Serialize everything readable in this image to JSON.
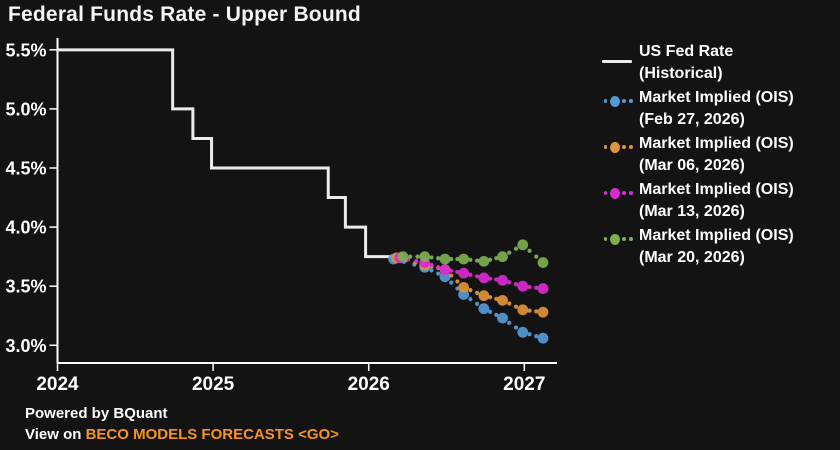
{
  "footer": {
    "powered_by": "Powered by BQuant",
    "view_on": "View on ",
    "link": "BECO MODELS FORECASTS <GO>",
    "link_color": "#f7931e"
  },
  "colors": {
    "background": "#131313",
    "axis": "#ffffff",
    "text": "#ffffff"
  },
  "chart_data": {
    "type": "line",
    "title": "Federal Funds Rate - Upper Bound",
    "xlabel": "",
    "ylabel": "",
    "legend_position": "right",
    "grid": false,
    "x_axis": {
      "ticks": [
        2024,
        2025,
        2026,
        2027
      ],
      "tick_labels": [
        "2024",
        "2025",
        "2026",
        "2027"
      ],
      "range": [
        2024,
        2027.21
      ]
    },
    "y_axis": {
      "tick_values": [
        5.5,
        5.0,
        4.5,
        4.0,
        3.5,
        3.0
      ],
      "tick_labels": [
        "5.5%",
        "5.0%",
        "4.5%",
        "4.0%",
        "3.5%",
        "3.0%"
      ],
      "range": [
        2.85,
        5.6
      ]
    },
    "series": [
      {
        "name": "US Fed Rate (Historical)",
        "legend": [
          "US Fed Rate",
          "(Historical)"
        ],
        "type": "step-line",
        "color": "#ebebeb",
        "points": [
          [
            2024.0,
            5.5
          ],
          [
            2024.74,
            5.0
          ],
          [
            2024.87,
            4.75
          ],
          [
            2024.99,
            4.5
          ],
          [
            2025.74,
            4.25
          ],
          [
            2025.85,
            4.0
          ],
          [
            2025.98,
            3.75
          ]
        ],
        "end_x": 2026.18
      },
      {
        "name": "Market Implied (OIS) (Feb 27, 2026)",
        "legend": [
          "Market Implied (OIS)",
          "(Feb 27, 2026)"
        ],
        "type": "dotted-markers",
        "color": "#539bd8",
        "points": [
          [
            2026.16,
            3.73
          ],
          [
            2026.36,
            3.66
          ],
          [
            2026.49,
            3.58
          ],
          [
            2026.61,
            3.43
          ],
          [
            2026.74,
            3.31
          ],
          [
            2026.86,
            3.23
          ],
          [
            2026.99,
            3.11
          ],
          [
            2027.12,
            3.06
          ]
        ]
      },
      {
        "name": "Market Implied (OIS) (Mar 06, 2026)",
        "legend": [
          "Market Implied (OIS)",
          "(Mar 06, 2026)"
        ],
        "type": "dotted-markers",
        "color": "#e09338",
        "points": [
          [
            2026.18,
            3.74
          ],
          [
            2026.36,
            3.68
          ],
          [
            2026.49,
            3.64
          ],
          [
            2026.61,
            3.49
          ],
          [
            2026.74,
            3.42
          ],
          [
            2026.86,
            3.38
          ],
          [
            2026.99,
            3.3
          ],
          [
            2027.12,
            3.28
          ]
        ]
      },
      {
        "name": "Market Implied (OIS) (Mar 13, 2026)",
        "legend": [
          "Market Implied (OIS)",
          "(Mar 13, 2026)"
        ],
        "type": "dotted-markers",
        "color": "#da2ad2",
        "points": [
          [
            2026.2,
            3.74
          ],
          [
            2026.36,
            3.7
          ],
          [
            2026.49,
            3.64
          ],
          [
            2026.61,
            3.61
          ],
          [
            2026.74,
            3.57
          ],
          [
            2026.86,
            3.55
          ],
          [
            2026.99,
            3.5
          ],
          [
            2027.12,
            3.48
          ]
        ]
      },
      {
        "name": "Market Implied (OIS) (Mar 20, 2026)",
        "legend": [
          "Market Implied (OIS)",
          "(Mar 20, 2026)"
        ],
        "type": "dotted-markers",
        "color": "#7bb04f",
        "points": [
          [
            2026.22,
            3.75
          ],
          [
            2026.36,
            3.75
          ],
          [
            2026.49,
            3.73
          ],
          [
            2026.61,
            3.73
          ],
          [
            2026.74,
            3.71
          ],
          [
            2026.86,
            3.75
          ],
          [
            2026.99,
            3.85
          ],
          [
            2027.12,
            3.7
          ]
        ]
      }
    ]
  }
}
